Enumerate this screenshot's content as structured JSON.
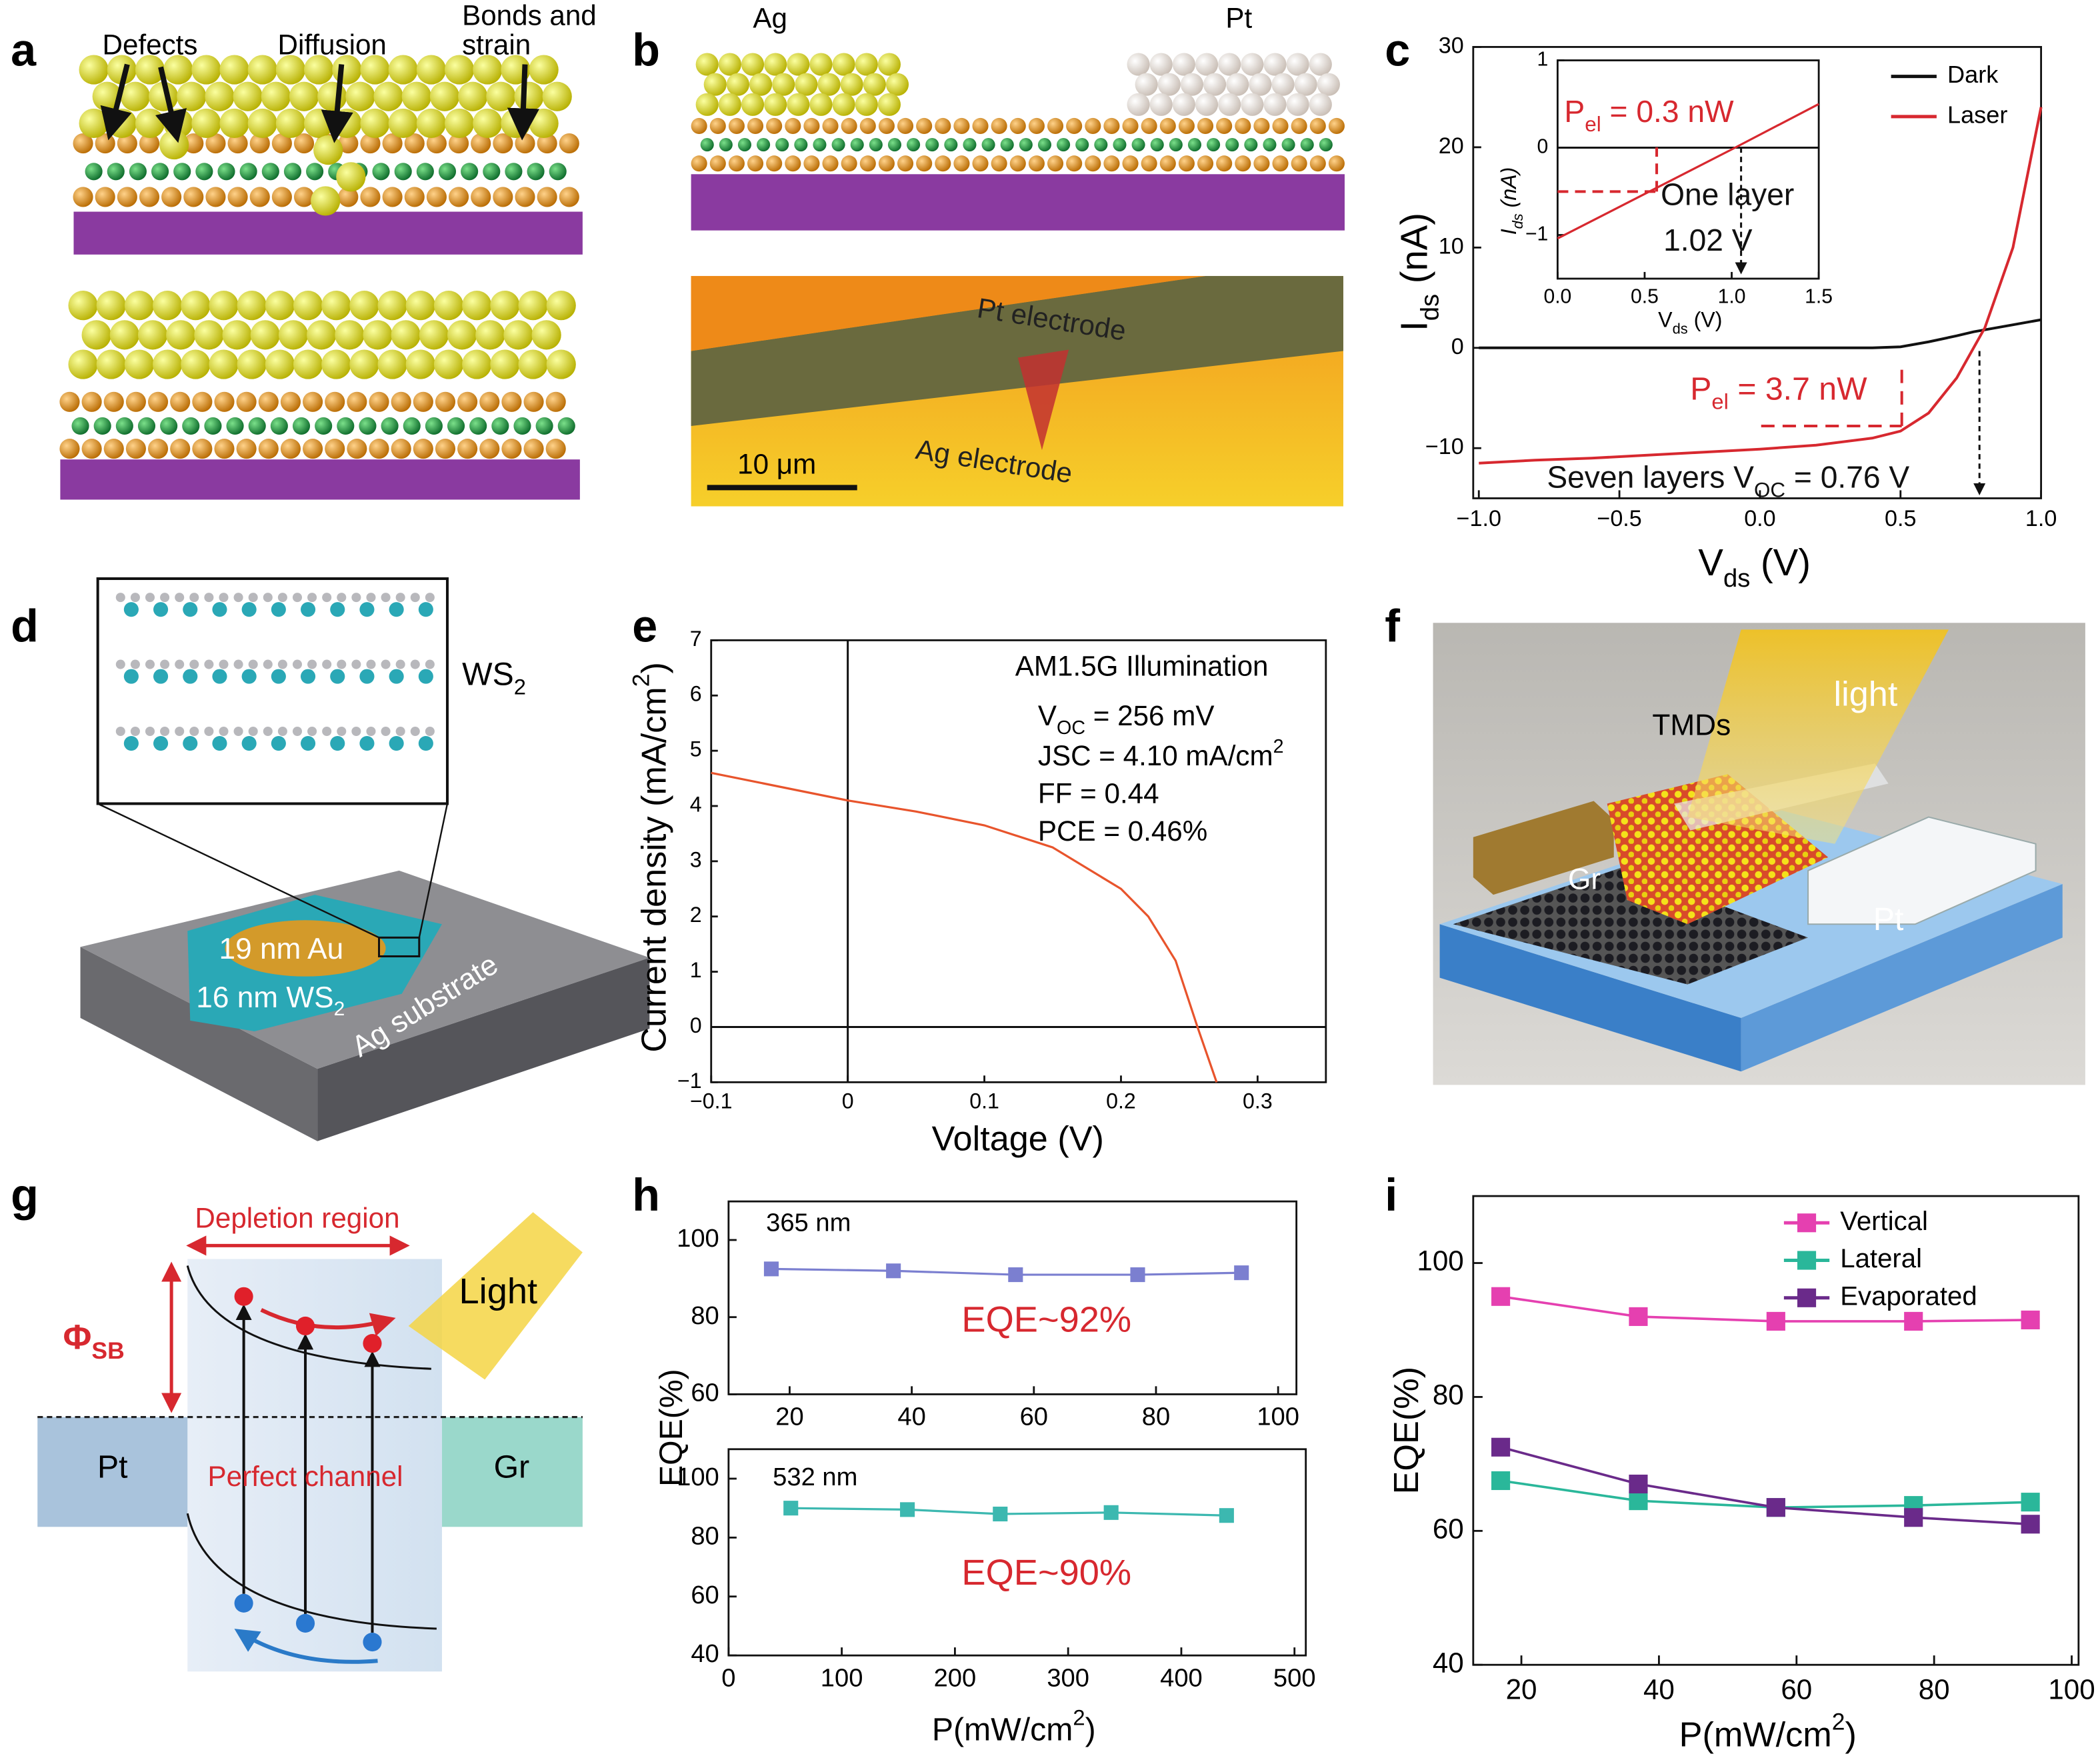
{
  "panel_labels": [
    "a",
    "b",
    "c",
    "d",
    "e",
    "f",
    "g",
    "h",
    "i"
  ],
  "panel_a": {
    "labels": [
      "Defects",
      "Diffusion",
      "Bonds and",
      "strain"
    ]
  },
  "panel_b": {
    "labels": [
      "Ag",
      "Pt",
      "Pt electrode",
      "Ag electrode",
      "10 μm"
    ]
  },
  "panel_d": {
    "labels": [
      [
        "WS",
        {
          "sub": "2"
        }
      ],
      "19 nm Au",
      [
        "16 nm WS",
        {
          "sub": "2"
        }
      ],
      "Ag substrate"
    ]
  },
  "panel_f": {
    "labels": [
      "TMDs",
      "light",
      "Gr",
      "Pt"
    ]
  },
  "panel_g": {
    "labels": [
      "Depletion region",
      [
        "Φ",
        {
          "sub": "SB"
        }
      ],
      "Light",
      "Pt",
      "Perfect channel",
      "Gr"
    ]
  },
  "chart_data": [
    {
      "type": "line",
      "x_label": [
        "V",
        {
          "sub": "ds"
        },
        " (V)"
      ],
      "y_label": [
        "I",
        {
          "sub": "ds"
        },
        " (nA)"
      ],
      "x": [
        -1,
        -0.8,
        -0.6,
        -0.4,
        -0.2,
        0,
        0.2,
        0.4,
        0.5,
        0.6,
        0.7,
        0.76,
        0.8,
        0.9,
        1.0
      ],
      "series": [
        {
          "name": "Dark",
          "color": "#111111",
          "values": [
            0,
            0,
            0,
            0,
            0,
            0,
            0,
            0,
            0.1,
            0.6,
            1.2,
            1.6,
            1.8,
            2.3,
            2.8
          ]
        },
        {
          "name": "Laser",
          "color": "#d7282f",
          "values": [
            -11.5,
            -11.2,
            -11,
            -10.7,
            -10.4,
            -10.1,
            -9.7,
            -9,
            -8.3,
            -6.5,
            -3,
            0,
            2,
            10,
            24
          ]
        }
      ],
      "xlim": [
        -1.02,
        1.0
      ],
      "xticks": [
        {
          "value": -1,
          "label": "−1.0"
        },
        {
          "value": -0.5,
          "label": "−0.5"
        },
        {
          "value": 0,
          "label": "0.0"
        },
        0.5,
        {
          "value": 1,
          "label": "1.0"
        }
      ],
      "ylim": [
        -15,
        30
      ],
      "yticks": [
        {
          "value": -10,
          "label": "−10"
        },
        0,
        10,
        20,
        30
      ],
      "legend": "upper right",
      "annotations": [
        [
          "P",
          {
            "sub": "el"
          },
          " = 3.7 nW"
        ],
        [
          "Seven layers V",
          {
            "sub": "OC"
          },
          " = 0.76 V"
        ]
      ]
    },
    {
      "type": "line",
      "x_label": [
        "V",
        {
          "sub": "ds"
        },
        " (V)"
      ],
      "y_label": [
        "I",
        {
          "sub": "ds"
        },
        " (nA)"
      ],
      "x": [
        0,
        0.5,
        1.0,
        1.5
      ],
      "values": [
        -1.04,
        -0.53,
        -0.02,
        0.5
      ],
      "color": "#d7282f",
      "xlim": [
        0,
        1.5
      ],
      "xticks": [
        {
          "value": 0,
          "label": "0.0"
        },
        0.5,
        {
          "value": 1,
          "label": "1.0"
        },
        1.5
      ],
      "ylim": [
        -1.5,
        1
      ],
      "yticks": [
        {
          "value": -1,
          "label": "−1"
        },
        0,
        1
      ],
      "zero_lines": [
        "y"
      ],
      "annotations": [
        [
          "P",
          {
            "sub": "el"
          },
          " = 0.3 nW"
        ],
        "One layer",
        "1.02 V"
      ]
    },
    {
      "type": "line",
      "x_label": "Voltage (V)",
      "y_label": [
        "Current density (mA/cm",
        {
          "sup": "2"
        },
        ")"
      ],
      "x": [
        -0.1,
        -0.05,
        0,
        0.05,
        0.1,
        0.15,
        0.2,
        0.22,
        0.24,
        0.256,
        0.27
      ],
      "values": [
        4.6,
        4.35,
        4.1,
        3.9,
        3.65,
        3.25,
        2.5,
        2.0,
        1.2,
        0,
        -1
      ],
      "color": "#e8542c",
      "xlim": [
        -0.1,
        0.35
      ],
      "xticks": [
        {
          "value": -0.1,
          "label": "−0.1"
        },
        0,
        0.1,
        0.2,
        0.3
      ],
      "ylim": [
        -1,
        7
      ],
      "yticks": [
        {
          "value": -1,
          "label": "−1"
        },
        0,
        1,
        2,
        3,
        4,
        5,
        6,
        7
      ],
      "zero_lines": [
        "x",
        "y"
      ],
      "annotations": [
        "AM1.5G Illumination",
        [
          "V",
          {
            "sub": "OC"
          },
          " = 256 mV"
        ],
        [
          "JSC = 4.10 mA/cm",
          {
            "sup": "2"
          }
        ],
        "FF = 0.44",
        "PCE = 0.46%"
      ]
    },
    {
      "type": "line",
      "y_label": "EQE(%)",
      "marker": "square",
      "x": [
        17,
        37,
        57,
        77,
        94
      ],
      "values": [
        92.5,
        92,
        91,
        91,
        91.5
      ],
      "color": "#7b7fd0",
      "xlim": [
        10,
        103
      ],
      "xticks": [
        20,
        40,
        60,
        80,
        100
      ],
      "ylim": [
        60,
        110
      ],
      "yticks": [
        60,
        80,
        100
      ],
      "annotations": [
        "365 nm",
        "EQE~92%"
      ]
    },
    {
      "type": "line",
      "x_label": [
        "P(mW/cm",
        {
          "sup": "2"
        },
        ")"
      ],
      "marker": "square",
      "x": [
        55,
        158,
        240,
        338,
        440
      ],
      "values": [
        90,
        89.5,
        88,
        88.5,
        87.5
      ],
      "color": "#3cb8b0",
      "xlim": [
        0,
        510
      ],
      "xticks": [
        0,
        100,
        200,
        300,
        400,
        500
      ],
      "ylim": [
        40,
        110
      ],
      "yticks": [
        40,
        60,
        80,
        100
      ],
      "annotations": [
        "532 nm",
        "EQE~90%"
      ]
    },
    {
      "type": "line",
      "x_label": [
        "P(mW/cm",
        {
          "sup": "2"
        },
        ")"
      ],
      "y_label": "EQE(%)",
      "marker": "square",
      "x": [
        17,
        37,
        57,
        77,
        94
      ],
      "series": [
        {
          "name": "Vertical",
          "color": "#e540b0",
          "values": [
            95,
            92,
            91.3,
            91.3,
            91.5
          ]
        },
        {
          "name": "Lateral",
          "color": "#2ab79a",
          "values": [
            67.5,
            64.5,
            63.5,
            63.8,
            64.3
          ]
        },
        {
          "name": "Evaporated",
          "color": "#6a2a8a",
          "values": [
            72.5,
            67,
            63.5,
            62,
            61
          ]
        }
      ],
      "xlim": [
        13,
        101
      ],
      "xticks": [
        20,
        40,
        60,
        80,
        100
      ],
      "ylim": [
        40,
        110
      ],
      "yticks": [
        40,
        60,
        80,
        100
      ],
      "legend": "upper right"
    }
  ]
}
